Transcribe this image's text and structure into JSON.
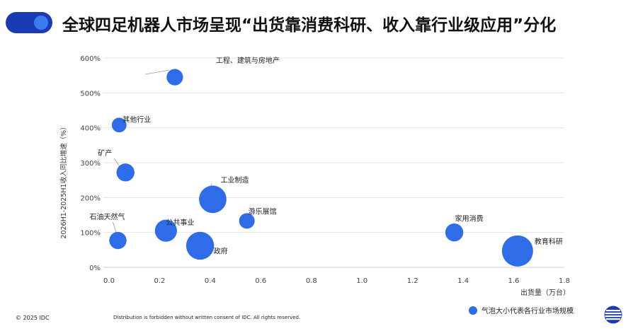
{
  "title": "全球四足机器人市场呈现“出货靠消费科研、收入靠行业级应用”分化",
  "footer": {
    "copyright": "© 2025 IDC",
    "distribution": "Distribution is forbidden without written consent of IDC. All rights reserved."
  },
  "legend_note": "气泡大小代表各行业市场规模",
  "colors": {
    "brand_dark": "#1b3bb5",
    "accent": "#3d7bf5",
    "bubble": "#2f6de8"
  },
  "icons": {
    "logo": "idc-globe-icon"
  },
  "chart_data": {
    "type": "scatter",
    "title": "",
    "xlabel": "出货量（万台）",
    "ylabel": "2026H1-2025H1收入同比增速（%）",
    "xlim": [
      0.0,
      1.8
    ],
    "ylim": [
      0,
      600
    ],
    "x_ticks": [
      "0.0",
      "0.2",
      "0.4",
      "0.6",
      "0.8",
      "1.0",
      "1.2",
      "1.4",
      "1.6",
      "1.8"
    ],
    "y_ticks": [
      "0%",
      "100%",
      "200%",
      "300%",
      "400%",
      "500%",
      "600%"
    ],
    "grid": "horizontal",
    "points": [
      {
        "label": "工程、建筑与房地产",
        "x": 0.26,
        "y": 545,
        "size": 1.0
      },
      {
        "label": "其他行业",
        "x": 0.04,
        "y": 408,
        "size": 0.8
      },
      {
        "label": "矿产",
        "x": 0.065,
        "y": 272,
        "size": 1.2
      },
      {
        "label": "工业制造",
        "x": 0.41,
        "y": 195,
        "size": 2.8
      },
      {
        "label": "游乐展馆",
        "x": 0.545,
        "y": 133,
        "size": 0.9
      },
      {
        "label": "公共事业",
        "x": 0.225,
        "y": 105,
        "size": 1.8
      },
      {
        "label": "石油天然气",
        "x": 0.035,
        "y": 77,
        "size": 1.1
      },
      {
        "label": "政府",
        "x": 0.36,
        "y": 62,
        "size": 2.9
      },
      {
        "label": "家用消费",
        "x": 1.365,
        "y": 100,
        "size": 1.2
      },
      {
        "label": "教育科研",
        "x": 1.615,
        "y": 47,
        "size": 3.6
      }
    ]
  }
}
